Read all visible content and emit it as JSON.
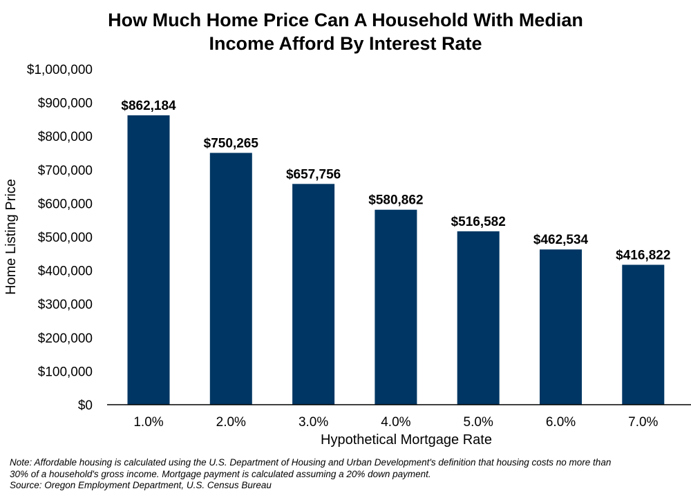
{
  "chart_data": {
    "type": "bar",
    "title_line1": "How Much Home Price Can A Household With Median",
    "title_line2": "Income Afford By Interest Rate",
    "xlabel": "Hypothetical Mortgage Rate",
    "ylabel": "Home Listing Price",
    "categories": [
      "1.0%",
      "2.0%",
      "3.0%",
      "4.0%",
      "5.0%",
      "6.0%",
      "7.0%"
    ],
    "values": [
      862184,
      750265,
      657756,
      580862,
      516582,
      462534,
      416822
    ],
    "value_labels": [
      "$862,184",
      "$750,265",
      "$657,756",
      "$580,862",
      "$516,582",
      "$462,534",
      "$416,822"
    ],
    "ylim": [
      0,
      1000000
    ],
    "yticks": [
      0,
      100000,
      200000,
      300000,
      400000,
      500000,
      600000,
      700000,
      800000,
      900000,
      1000000
    ],
    "ytick_labels": [
      "$0",
      "$100,000",
      "$200,000",
      "$300,000",
      "$400,000",
      "$500,000",
      "$600,000",
      "$700,000",
      "$800,000",
      "$900,000",
      "$1,000,000"
    ],
    "bar_color": "#003663",
    "grid": false
  },
  "notes": {
    "line1": "Note: Affordable housing is calculated using the U.S. Department of Housing and Urban Development's definition that housing costs no more than",
    "line2": "30% of a household's gross income. Mortgage payment is calculated assuming a 20% down payment.",
    "line3": "Source: Oregon Employment Department, U.S. Census Bureau"
  }
}
